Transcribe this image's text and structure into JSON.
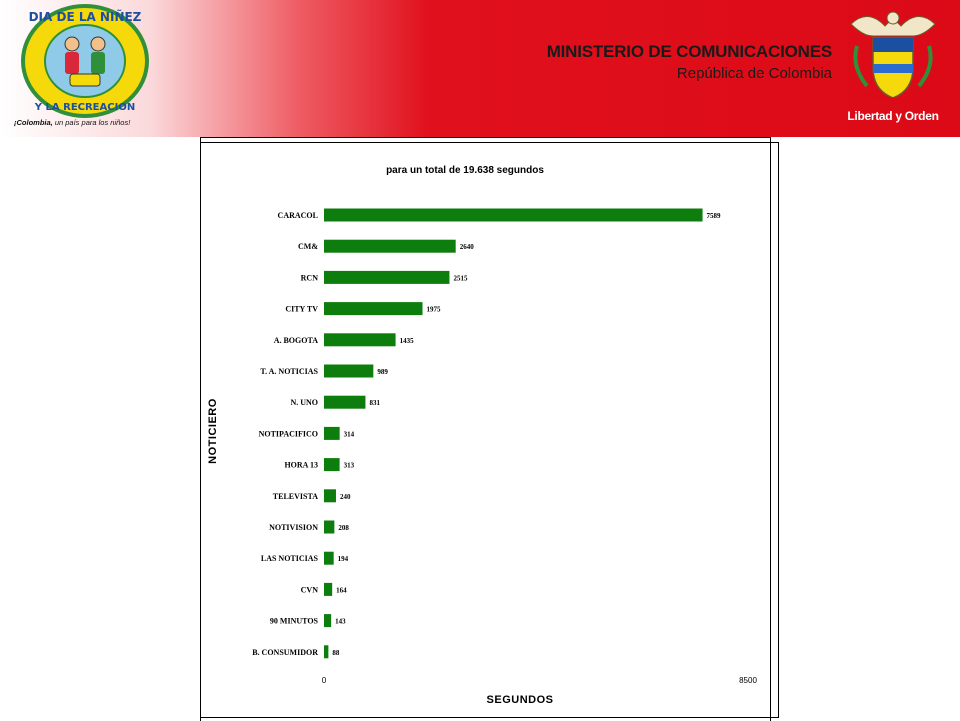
{
  "header": {
    "title": "MINISTERIO DE COMUNICACIONES",
    "subtitle": "República de Colombia",
    "motto": "Libertad y Orden",
    "left_logo": {
      "line1": "DIA DE LA NIÑEZ",
      "line2": "Y LA RECREACION",
      "caption_brand": "¡Colombia,",
      "caption_rest": " un país para los niños!"
    },
    "colors": {
      "brand_red": "#dc0a17",
      "logo_yellow": "#f5d90a",
      "logo_green": "#2f8f3a"
    }
  },
  "chart_data": {
    "type": "bar",
    "orientation": "horizontal",
    "title": "para un total de 19.638 segundos",
    "xlabel": "SEGUNDOS",
    "ylabel": "NOTICIERO",
    "xlim": [
      0,
      8500
    ],
    "xticks": [
      "0",
      "8500"
    ],
    "grid": false,
    "bar_color": "#0d7d0d",
    "categories": [
      "CARACOL",
      "CM&",
      "RCN",
      "CITY TV",
      "A. BOGOTA",
      "T. A. NOTICIAS",
      "N. UNO",
      "NOTIPACIFICO",
      "HORA 13",
      "TELEVISTA",
      "NOTIVISION",
      "LAS NOTICIAS",
      "CVN",
      "90 MINUTOS",
      "B. CONSUMIDOR"
    ],
    "values": [
      7589,
      2640,
      2515,
      1975,
      1435,
      989,
      831,
      314,
      313,
      240,
      208,
      194,
      164,
      143,
      88
    ],
    "labels": [
      "7589",
      "2640",
      "2515",
      "1975",
      "1435",
      "989",
      "831",
      "314",
      "313",
      "240",
      "208",
      "194",
      "164",
      "143",
      "88"
    ]
  }
}
